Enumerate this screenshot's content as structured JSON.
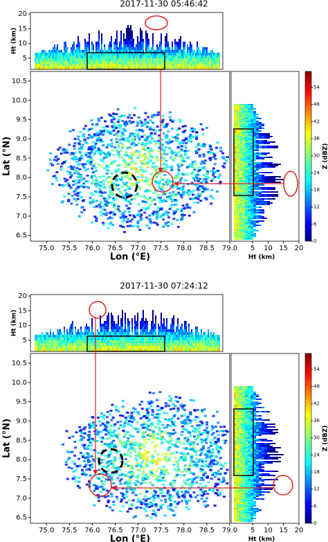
{
  "chart_data": [
    {
      "type": "radar-composite",
      "title": "2017-11-30 05:46:42",
      "map": {
        "xlabel": "Lon (°E)",
        "ylabel": "Lat (°N)",
        "xlim": [
          74.65,
          79.0
        ],
        "ylim": [
          6.35,
          10.75
        ],
        "xticks": [
          {
            "value": 75,
            "label": "75.0"
          },
          {
            "value": 75.5,
            "label": "75.5"
          },
          {
            "value": 76,
            "label": "76.0"
          },
          {
            "value": 76.5,
            "label": "76.5"
          },
          {
            "value": 77,
            "label": "77.0"
          },
          {
            "value": 77.5,
            "label": "77.5"
          },
          {
            "value": 78,
            "label": "78.0"
          },
          {
            "value": 78.5,
            "label": "78.5"
          },
          {
            "value": 79,
            "label": "79.0"
          }
        ],
        "yticks": [
          6.5,
          {
            "value": 7,
            "label": "7.0"
          },
          7.5,
          {
            "value": 8,
            "label": "8.0"
          },
          8.5,
          {
            "value": 9,
            "label": "9.0"
          },
          9.5,
          {
            "value": 10,
            "label": "10.0"
          },
          10.5
        ]
      },
      "top": {
        "ylabel": "Ht (km)",
        "ylim": [
          1.2,
          20.5
        ],
        "yticks": [
          5,
          10,
          15,
          20
        ]
      },
      "side": {
        "xlabel": "Ht (km)",
        "xlim": [
          -2,
          20
        ],
        "xticks": [
          5,
          10,
          15,
          20
        ]
      },
      "colorbar": {
        "label": "Z (dBZ)",
        "lim": [
          0,
          59.6
        ],
        "ticks": [
          0,
          6,
          12,
          18,
          24,
          30,
          36,
          42,
          48,
          54
        ]
      }
    },
    {
      "type": "radar-composite",
      "title": "2017-11-30 07:24:12",
      "map": {
        "xlabel": "Lon (°E)",
        "ylabel": "Lat (°N)",
        "xlim": [
          74.65,
          79.0
        ],
        "ylim": [
          6.35,
          10.75
        ],
        "xticks": [
          {
            "value": 75,
            "label": "75.0"
          },
          {
            "value": 75.5,
            "label": "75.5"
          },
          {
            "value": 76,
            "label": "76.0"
          },
          {
            "value": 76.5,
            "label": "76.5"
          },
          {
            "value": 77,
            "label": "77.0"
          },
          {
            "value": 77.5,
            "label": "77.5"
          },
          {
            "value": 78,
            "label": "78.0"
          },
          {
            "value": 78.5,
            "label": "78.5"
          },
          {
            "value": 79,
            "label": "79.0"
          }
        ],
        "yticks": [
          6.5,
          {
            "value": 7,
            "label": "7.0"
          },
          7.5,
          {
            "value": 8,
            "label": "8.0"
          },
          8.5,
          {
            "value": 9,
            "label": "9.0"
          },
          9.5,
          {
            "value": 10,
            "label": "10.0"
          },
          10.5
        ]
      },
      "top": {
        "ylabel": "Ht (km)",
        "ylim": [
          1.2,
          20.5
        ],
        "yticks": [
          5,
          10,
          15,
          20
        ]
      },
      "side": {
        "xlabel": "Ht (km)",
        "xlim": [
          -2,
          20
        ],
        "xticks": [
          5,
          10,
          15,
          20
        ]
      },
      "colorbar": {
        "label": "Z (dBZ)",
        "lim": [
          0,
          59.6
        ],
        "ticks": [
          0,
          6,
          12,
          18,
          24,
          30,
          36,
          42,
          48,
          54
        ]
      }
    }
  ]
}
